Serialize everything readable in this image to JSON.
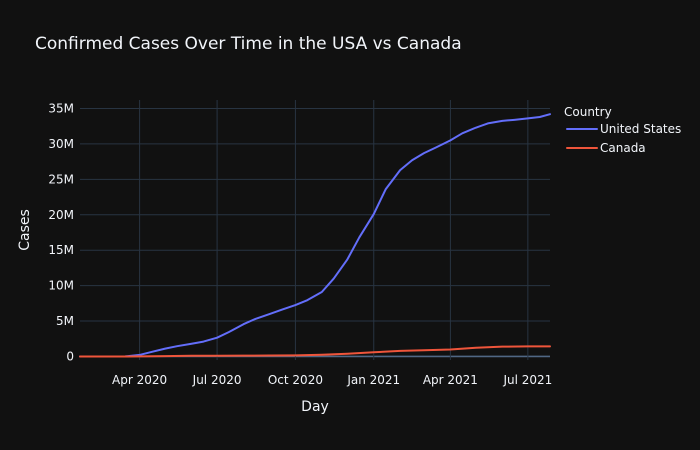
{
  "chart_data": {
    "type": "line",
    "title": "Confirmed Cases Over Time in the USA vs Canada",
    "xlabel": "Day",
    "ylabel": "Cases",
    "x_ticks": [
      "Apr 2020",
      "Jul 2020",
      "Oct 2020",
      "Jan 2021",
      "Apr 2021",
      "Jul 2021"
    ],
    "x_tick_dates": [
      "2020-04-01",
      "2020-07-01",
      "2020-10-01",
      "2021-01-01",
      "2021-04-01",
      "2021-07-01"
    ],
    "y_ticks": [
      "0",
      "5M",
      "10M",
      "15M",
      "20M",
      "25M",
      "30M",
      "35M"
    ],
    "y_tick_values": [
      0,
      5000000,
      10000000,
      15000000,
      20000000,
      25000000,
      30000000,
      35000000
    ],
    "xlim": [
      "2020-01-22",
      "2021-07-27"
    ],
    "ylim": [
      -500000,
      36200000
    ],
    "grid": true,
    "legend": {
      "title": "Country",
      "position": "top-right"
    },
    "series": [
      {
        "name": "United States",
        "color": "#636efa",
        "points": [
          [
            "2020-01-22",
            0
          ],
          [
            "2020-03-01",
            100
          ],
          [
            "2020-03-15",
            3500
          ],
          [
            "2020-04-01",
            215000
          ],
          [
            "2020-04-15",
            640000
          ],
          [
            "2020-05-01",
            1100000
          ],
          [
            "2020-05-15",
            1450000
          ],
          [
            "2020-06-01",
            1800000
          ],
          [
            "2020-06-15",
            2100000
          ],
          [
            "2020-07-01",
            2650000
          ],
          [
            "2020-07-15",
            3450000
          ],
          [
            "2020-08-01",
            4550000
          ],
          [
            "2020-08-15",
            5300000
          ],
          [
            "2020-09-01",
            6000000
          ],
          [
            "2020-09-15",
            6600000
          ],
          [
            "2020-10-01",
            7250000
          ],
          [
            "2020-10-15",
            7950000
          ],
          [
            "2020-11-01",
            9100000
          ],
          [
            "2020-11-15",
            11000000
          ],
          [
            "2020-12-01",
            13700000
          ],
          [
            "2020-12-15",
            16800000
          ],
          [
            "2021-01-01",
            20100000
          ],
          [
            "2021-01-15",
            23600000
          ],
          [
            "2021-02-01",
            26300000
          ],
          [
            "2021-02-15",
            27700000
          ],
          [
            "2021-03-01",
            28700000
          ],
          [
            "2021-03-15",
            29500000
          ],
          [
            "2021-04-01",
            30500000
          ],
          [
            "2021-04-15",
            31500000
          ],
          [
            "2021-05-01",
            32300000
          ],
          [
            "2021-05-15",
            32900000
          ],
          [
            "2021-06-01",
            33250000
          ],
          [
            "2021-06-15",
            33400000
          ],
          [
            "2021-07-01",
            33600000
          ],
          [
            "2021-07-15",
            33800000
          ],
          [
            "2021-07-27",
            34200000
          ]
        ]
      },
      {
        "name": "Canada",
        "color": "#ef553b",
        "points": [
          [
            "2020-01-22",
            0
          ],
          [
            "2020-03-15",
            300
          ],
          [
            "2020-04-01",
            9500
          ],
          [
            "2020-05-01",
            55000
          ],
          [
            "2020-06-01",
            91000
          ],
          [
            "2020-07-01",
            104000
          ],
          [
            "2020-08-01",
            116000
          ],
          [
            "2020-09-01",
            130000
          ],
          [
            "2020-10-01",
            160000
          ],
          [
            "2020-11-01",
            236000
          ],
          [
            "2020-12-01",
            380000
          ],
          [
            "2021-01-01",
            590000
          ],
          [
            "2021-02-01",
            780000
          ],
          [
            "2021-03-01",
            870000
          ],
          [
            "2021-04-01",
            990000
          ],
          [
            "2021-05-01",
            1230000
          ],
          [
            "2021-06-01",
            1380000
          ],
          [
            "2021-07-01",
            1415000
          ],
          [
            "2021-07-27",
            1430000
          ]
        ]
      }
    ]
  }
}
